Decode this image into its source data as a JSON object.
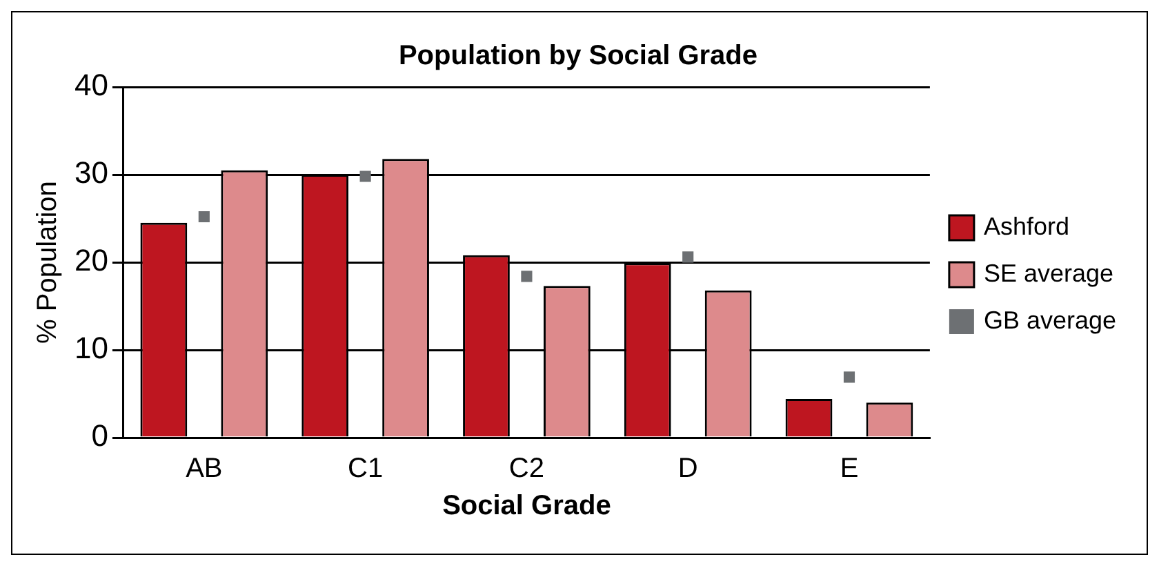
{
  "chart_data": {
    "type": "bar",
    "title": "Population by Social Grade",
    "xlabel": "Social Grade",
    "ylabel": "% Population",
    "categories": [
      "AB",
      "C1",
      "C2",
      "D",
      "E"
    ],
    "series": [
      {
        "name": "Ashford",
        "color": "#be1620",
        "values": [
          24.5,
          30.0,
          20.8,
          19.9,
          4.4
        ]
      },
      {
        "name": "SE average",
        "color": "#dd8a8c",
        "values": [
          30.5,
          31.8,
          17.3,
          16.8,
          4.0
        ]
      },
      {
        "name": "GB average",
        "type": "scatter",
        "color": "#6d7073",
        "values": [
          25.2,
          29.8,
          18.4,
          20.6,
          6.9
        ],
        "marker": "square"
      }
    ],
    "ylim": [
      0,
      40
    ],
    "yticks": [
      0,
      10,
      20,
      30,
      40
    ],
    "grid": "y",
    "legend": "right"
  }
}
